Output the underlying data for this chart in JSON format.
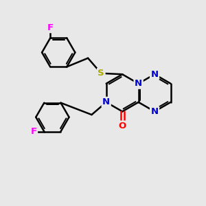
{
  "background_color": "#e8e8e8",
  "atom_colors": {
    "C": "#000000",
    "N": "#0000cc",
    "O": "#ff0000",
    "S": "#aaaa00",
    "F": "#ff00ff"
  },
  "bond_color": "#000000",
  "bond_width": 1.8,
  "figsize": [
    3.0,
    3.0
  ],
  "dpi": 100
}
